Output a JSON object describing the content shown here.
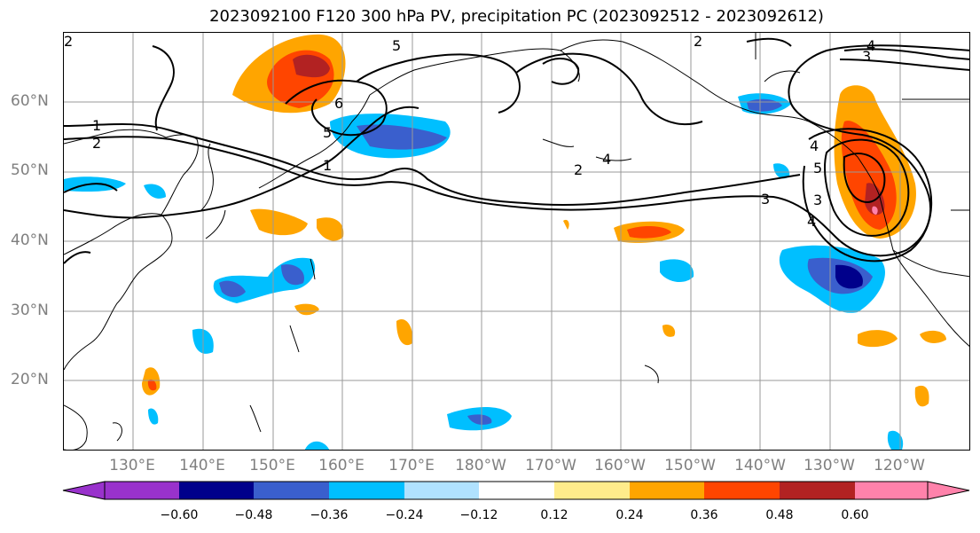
{
  "title": "2023092100 F120 300 hPa PV, precipitation PC (2023092512 - 2023092612)",
  "lat_labels": [
    "60°N",
    "50°N",
    "40°N",
    "30°N",
    "20°N"
  ],
  "lon_labels": [
    "130°E",
    "140°E",
    "150°E",
    "160°E",
    "170°E",
    "180°W",
    "170°W",
    "160°W",
    "150°W",
    "140°W",
    "130°W",
    "120°W"
  ],
  "contour_labels": [
    "1",
    "2",
    "2",
    "3",
    "4",
    "5",
    "6",
    "5",
    "1",
    "2",
    "4",
    "3",
    "4",
    "5",
    "2",
    "4",
    "3"
  ],
  "colorbar": {
    "ticks": [
      "−0.60",
      "−0.48",
      "−0.36",
      "−0.24",
      "−0.12",
      "0.12",
      "0.24",
      "0.36",
      "0.48",
      "0.60"
    ],
    "colors": [
      "#9932cc",
      "#00008b",
      "#3a5fcd",
      "#00bfff",
      "#b0e2ff",
      "#ffffff",
      "#ffec8b",
      "#ffa500",
      "#ff4500",
      "#b22222",
      "#ff82ab"
    ]
  },
  "colors": {
    "contour": "#000000",
    "coast": "#000000",
    "grid": "#999999",
    "axis_label": "#7f7f7f"
  }
}
